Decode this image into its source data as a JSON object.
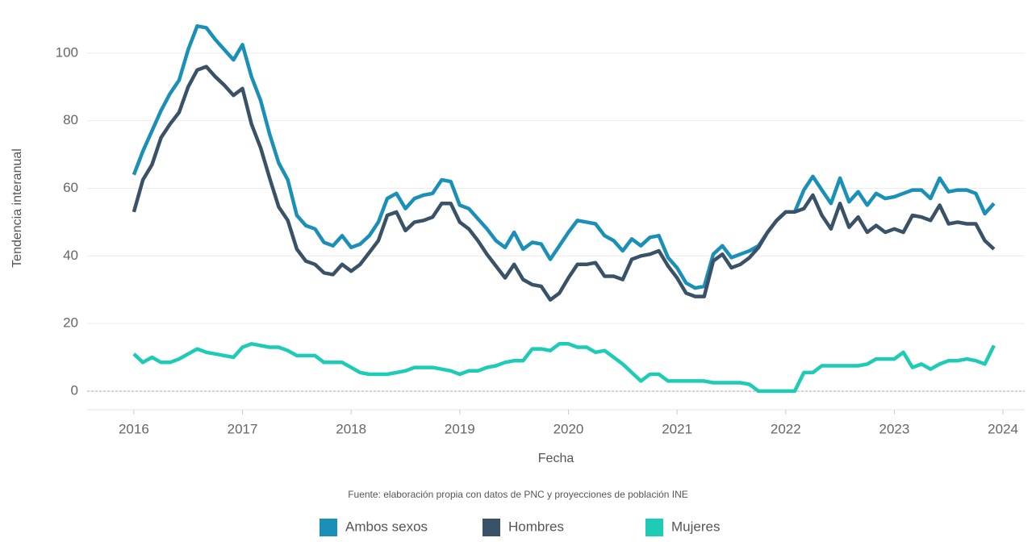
{
  "chart_data": {
    "type": "line",
    "xlabel": "Fecha",
    "ylabel": "Tendencia interanual",
    "source": "Fuente: elaboración propia con datos de PNC y proyecciones de población INE",
    "x": [
      2016,
      2016.083,
      2016.167,
      2016.25,
      2016.333,
      2016.417,
      2016.5,
      2016.583,
      2016.667,
      2016.75,
      2016.833,
      2016.917,
      2017,
      2017.083,
      2017.167,
      2017.25,
      2017.333,
      2017.417,
      2017.5,
      2017.583,
      2017.667,
      2017.75,
      2017.833,
      2017.917,
      2018,
      2018.083,
      2018.167,
      2018.25,
      2018.333,
      2018.417,
      2018.5,
      2018.583,
      2018.667,
      2018.75,
      2018.833,
      2018.917,
      2019,
      2019.083,
      2019.167,
      2019.25,
      2019.333,
      2019.417,
      2019.5,
      2019.583,
      2019.667,
      2019.75,
      2019.833,
      2019.917,
      2020,
      2020.083,
      2020.167,
      2020.25,
      2020.333,
      2020.417,
      2020.5,
      2020.583,
      2020.667,
      2020.75,
      2020.833,
      2020.917,
      2021,
      2021.083,
      2021.167,
      2021.25,
      2021.333,
      2021.417,
      2021.5,
      2021.583,
      2021.667,
      2021.75,
      2021.833,
      2021.917,
      2022,
      2022.083,
      2022.167,
      2022.25,
      2022.333,
      2022.417,
      2022.5,
      2022.583,
      2022.667,
      2022.75,
      2022.833,
      2022.917,
      2023,
      2023.083,
      2023.167,
      2023.25,
      2023.333,
      2023.417,
      2023.5,
      2023.583,
      2023.667,
      2023.75,
      2023.833,
      2023.917
    ],
    "series": [
      {
        "name": "Ambos sexos",
        "color": "#1a8fb8",
        "values": [
          64,
          71,
          77,
          83,
          88,
          92,
          101,
          108,
          107.5,
          104,
          101,
          98,
          102.5,
          93,
          86,
          76,
          67.5,
          62.5,
          52,
          49,
          48,
          44,
          43,
          46,
          42.5,
          43.5,
          46,
          50,
          57,
          58.5,
          54,
          57,
          58,
          58.5,
          62.5,
          62,
          55,
          54,
          51,
          48,
          44.5,
          42.5,
          47,
          42,
          44,
          43.5,
          39,
          43,
          47,
          50.5,
          50,
          49.5,
          46,
          44.5,
          41.5,
          45,
          43,
          45.5,
          46,
          39.5,
          36.5,
          32,
          30.5,
          31,
          40.5,
          43,
          39.5,
          40.5,
          41.5,
          43,
          47,
          50.5,
          53,
          53,
          59.5,
          63.5,
          59.5,
          55.5,
          63,
          56,
          59,
          55,
          58.5,
          57,
          57.5,
          58.5,
          59.5,
          59.5,
          57,
          63,
          59,
          59.5,
          59.5,
          58.5,
          52.5,
          55.5
        ]
      },
      {
        "name": "Hombres",
        "color": "#3a5268",
        "values": [
          53,
          62.5,
          67,
          75,
          79,
          82.5,
          90,
          95,
          96,
          93,
          90.5,
          87.5,
          89.5,
          79,
          72,
          63,
          54.5,
          50.5,
          42,
          38.5,
          37.5,
          35,
          34.5,
          37.5,
          35.5,
          37.5,
          41,
          44.5,
          52,
          53,
          47.5,
          50,
          50.5,
          51.5,
          55.5,
          55.5,
          50,
          48,
          44.5,
          40.5,
          37,
          33.5,
          37.5,
          33,
          31.5,
          31,
          27,
          29,
          33.5,
          37.5,
          37.5,
          38,
          34,
          34,
          33,
          39,
          40,
          40.5,
          41.5,
          37,
          33.5,
          29,
          28,
          28,
          38.5,
          40.5,
          36.5,
          37.5,
          39.5,
          42.5,
          47,
          50.5,
          53,
          53,
          54,
          58,
          52,
          48,
          55.5,
          48.5,
          51.5,
          47,
          49,
          47,
          48,
          47,
          52,
          51.5,
          50.5,
          55,
          49.5,
          50,
          49.5,
          49.5,
          44.5,
          42
        ]
      },
      {
        "name": "Mujeres",
        "color": "#1ecbb5",
        "values": [
          11,
          8.5,
          10,
          8.5,
          8.5,
          9.5,
          11,
          12.5,
          11.5,
          11,
          10.5,
          10,
          13,
          14,
          13.5,
          13,
          13,
          12,
          10.5,
          10.5,
          10.5,
          8.5,
          8.5,
          8.5,
          7,
          5.5,
          5,
          5,
          5,
          5.5,
          6,
          7,
          7,
          7,
          6.5,
          6,
          5,
          6,
          6,
          7,
          7.5,
          8.5,
          9,
          9,
          12.5,
          12.5,
          12,
          14,
          14,
          13,
          13,
          11.5,
          12,
          10,
          8,
          5.5,
          3,
          5,
          5,
          3,
          3,
          3,
          3,
          3,
          2.5,
          2.5,
          2.5,
          2.5,
          2,
          0,
          0,
          0,
          0,
          0,
          5.5,
          5.5,
          7.5,
          7.5,
          7.5,
          7.5,
          7.5,
          8,
          9.5,
          9.5,
          9.5,
          11.5,
          7,
          8,
          6.5,
          8,
          9,
          9,
          9.5,
          9,
          8,
          13.5
        ]
      }
    ],
    "xlim": [
      2015.57,
      2024.2
    ],
    "xticks": [
      2016,
      2017,
      2018,
      2019,
      2020,
      2021,
      2022,
      2023,
      2024
    ],
    "ylim": [
      -5.5,
      113.8
    ],
    "yticks": [
      0,
      20,
      40,
      60,
      80,
      100
    ],
    "grid": true,
    "zero_line": true
  }
}
